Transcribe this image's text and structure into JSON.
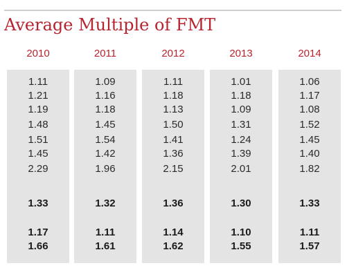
{
  "title": "Average Multiple of FMT",
  "columns": [
    {
      "year": "2010",
      "values": [
        "1.11",
        "1.21",
        "1.19",
        "1.48",
        "1.51",
        "1.45",
        "2.29"
      ],
      "summary": [
        "1.33",
        "1.17",
        "1.66"
      ]
    },
    {
      "year": "2011",
      "values": [
        "1.09",
        "1.16",
        "1.18",
        "1.45",
        "1.54",
        "1.42",
        "1.96"
      ],
      "summary": [
        "1.32",
        "1.11",
        "1.61"
      ]
    },
    {
      "year": "2012",
      "values": [
        "1.11",
        "1.18",
        "1.13",
        "1.50",
        "1.41",
        "1.36",
        "2.15"
      ],
      "summary": [
        "1.36",
        "1.14",
        "1.62"
      ]
    },
    {
      "year": "2013",
      "values": [
        "1.01",
        "1.18",
        "1.09",
        "1.31",
        "1.24",
        "1.39",
        "2.01"
      ],
      "summary": [
        "1.30",
        "1.10",
        "1.55"
      ]
    },
    {
      "year": "2014",
      "values": [
        "1.06",
        "1.17",
        "1.08",
        "1.52",
        "1.45",
        "1.40",
        "1.82"
      ],
      "summary": [
        "1.33",
        "1.11",
        "1.57"
      ]
    }
  ],
  "colors": {
    "accent": "#b5242f",
    "column_background": "#e4e4e4",
    "rule": "#cfcfcf",
    "text": "#2a2a2a"
  }
}
